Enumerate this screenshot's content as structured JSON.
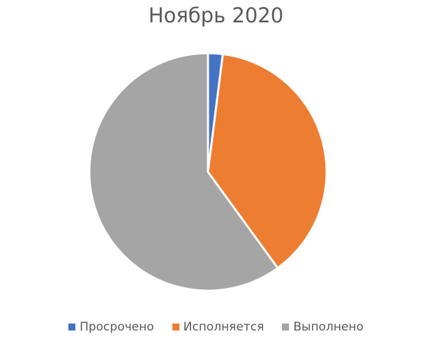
{
  "chart_data": {
    "type": "pie",
    "title": "Ноябрь 2020",
    "categories": [
      "Просрочено",
      "Исполняется",
      "Выполнено"
    ],
    "values": [
      2,
      38,
      60
    ],
    "colors": [
      "#4472C4",
      "#ED7D31",
      "#A5A5A5"
    ],
    "legend_position": "bottom"
  }
}
